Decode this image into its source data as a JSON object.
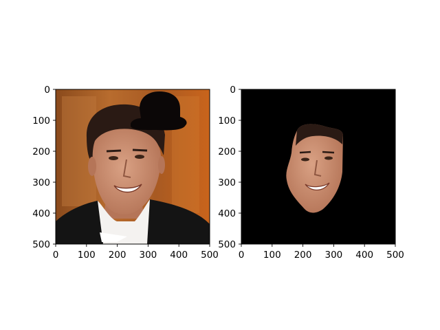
{
  "figure": {
    "background": "#ffffff"
  },
  "chart_data": [
    {
      "type": "image",
      "title": "",
      "xlabel": "",
      "ylabel": "",
      "xlim": [
        0,
        500
      ],
      "ylim": [
        500,
        0
      ],
      "xticks": [
        0,
        100,
        200,
        300,
        400,
        500
      ],
      "yticks": [
        0,
        100,
        200,
        300,
        400,
        500
      ],
      "image_content": "photo-with-hat",
      "colors": {
        "frame": "#000000",
        "background_wood": "#a85a22",
        "suit": "#141414",
        "shirt": "#f4f2f0",
        "hat": "#0b0707",
        "skin": "#c98b6f",
        "hair": "#2a1a14"
      }
    },
    {
      "type": "image",
      "title": "",
      "xlabel": "",
      "ylabel": "",
      "xlim": [
        0,
        500
      ],
      "ylim": [
        500,
        0
      ],
      "xticks": [
        0,
        100,
        200,
        300,
        400,
        500
      ],
      "yticks": [
        0,
        100,
        200,
        300,
        400,
        500
      ],
      "image_content": "face-mask",
      "colors": {
        "frame": "#000000",
        "background": "#000000",
        "skin": "#c98b6f",
        "hair": "#2a1a14"
      }
    }
  ]
}
